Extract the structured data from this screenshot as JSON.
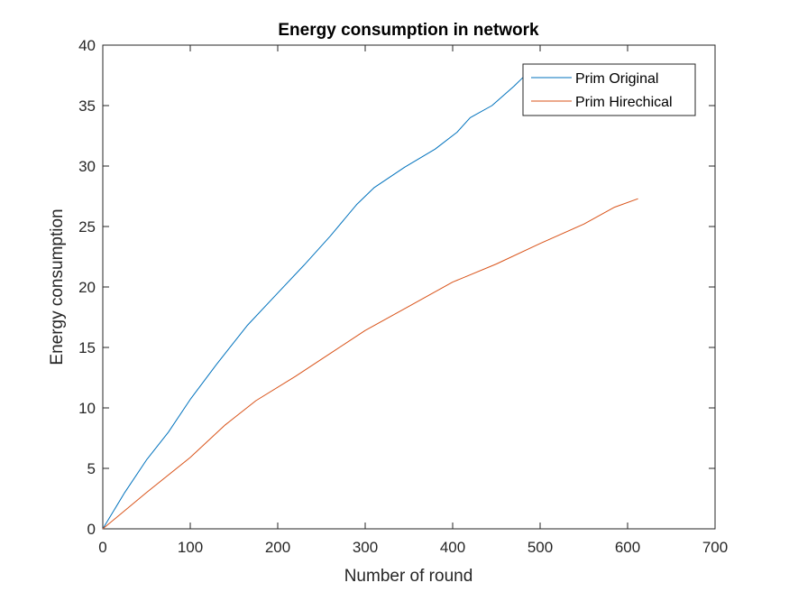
{
  "chart_data": {
    "type": "line",
    "title": "Energy consumption in network",
    "xlabel": "Number of round",
    "ylabel": "Energy consumption",
    "xlim": [
      0,
      700
    ],
    "ylim": [
      0,
      40
    ],
    "xticks": [
      "0",
      "100",
      "200",
      "300",
      "400",
      "500",
      "600",
      "700"
    ],
    "yticks": [
      "0",
      "5",
      "10",
      "15",
      "20",
      "25",
      "30",
      "35",
      "40"
    ],
    "grid": false,
    "legend_position": "top-right",
    "series": [
      {
        "name": "Prim Original",
        "color": "#0072BD",
        "points": [
          [
            0,
            0
          ],
          [
            25,
            3
          ],
          [
            50,
            5.7
          ],
          [
            75,
            8
          ],
          [
            100,
            10.7
          ],
          [
            130,
            13.6
          ],
          [
            165,
            16.8
          ],
          [
            200,
            19.5
          ],
          [
            230,
            21.8
          ],
          [
            260,
            24.2
          ],
          [
            290,
            26.8
          ],
          [
            310,
            28.2
          ],
          [
            345,
            29.9
          ],
          [
            380,
            31.4
          ],
          [
            405,
            32.8
          ],
          [
            420,
            34
          ],
          [
            445,
            35
          ],
          [
            470,
            36.6
          ],
          [
            480,
            37.3
          ],
          [
            484,
            37.5
          ]
        ]
      },
      {
        "name": "Prim Hirechical",
        "color": "#D95319",
        "points": [
          [
            0,
            0
          ],
          [
            50,
            3
          ],
          [
            100,
            5.9
          ],
          [
            140,
            8.6
          ],
          [
            175,
            10.6
          ],
          [
            220,
            12.6
          ],
          [
            260,
            14.5
          ],
          [
            300,
            16.4
          ],
          [
            350,
            18.4
          ],
          [
            400,
            20.4
          ],
          [
            450,
            21.9
          ],
          [
            500,
            23.6
          ],
          [
            550,
            25.2
          ],
          [
            585,
            26.6
          ],
          [
            612,
            27.3
          ]
        ]
      }
    ]
  }
}
